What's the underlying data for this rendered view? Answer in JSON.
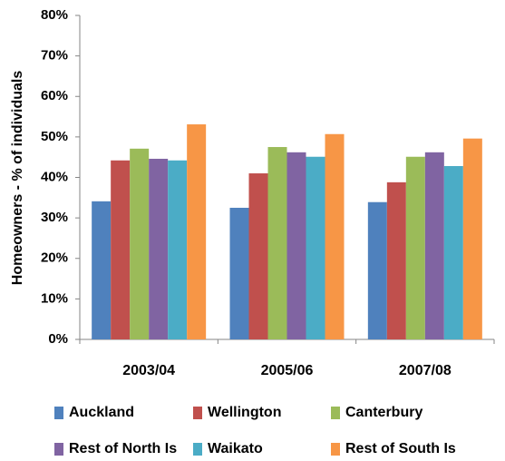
{
  "chart_data": {
    "type": "bar",
    "y_label": "Homeowners - % of individuals",
    "categories": [
      "2003/04",
      "2005/06",
      "2007/08"
    ],
    "series": [
      {
        "name": "Auckland",
        "color": "#4f81bd",
        "values": [
          34.1,
          32.5,
          33.9
        ]
      },
      {
        "name": "Wellington",
        "color": "#c0504d",
        "values": [
          44.2,
          41,
          38.8
        ]
      },
      {
        "name": "Canterbury",
        "color": "#9bbb59",
        "values": [
          47.1,
          47.5,
          45.1
        ]
      },
      {
        "name": "Rest of North Is",
        "color": "#8064a2",
        "values": [
          44.6,
          46.2,
          46.2
        ]
      },
      {
        "name": "Waikato",
        "color": "#4bacc6",
        "values": [
          44.2,
          45.1,
          42.8
        ]
      },
      {
        "name": "Rest of South Is",
        "color": "#f79646",
        "values": [
          53.1,
          50.7,
          49.6
        ]
      }
    ],
    "ylim": [
      0,
      80
    ],
    "yticks": [
      {
        "value": 0,
        "label": "0%"
      },
      {
        "value": 10,
        "label": "10%"
      },
      {
        "value": 20,
        "label": "20%"
      },
      {
        "value": 30,
        "label": "30%"
      },
      {
        "value": 40,
        "label": "40%"
      },
      {
        "value": 50,
        "label": "50%"
      },
      {
        "value": 60,
        "label": "60%"
      },
      {
        "value": 70,
        "label": "70%"
      },
      {
        "value": 80,
        "label": "80%"
      }
    ],
    "grid": false,
    "legend": "bottom"
  }
}
